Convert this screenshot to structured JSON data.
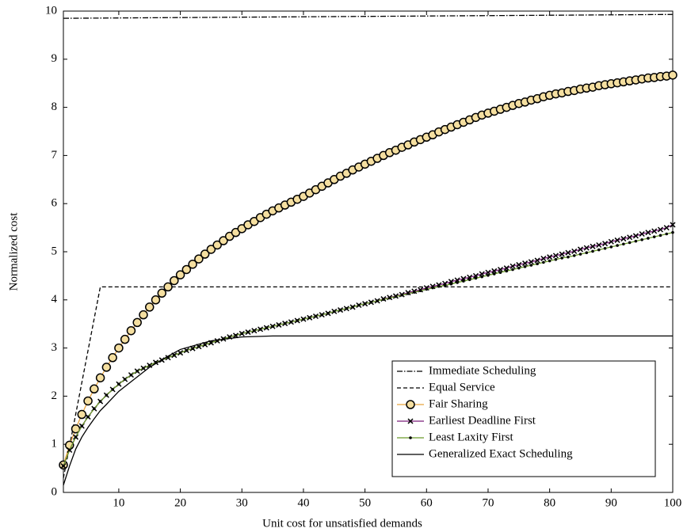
{
  "chart_data": {
    "type": "line",
    "xlabel": "Unit cost for unsatisfied demands",
    "ylabel": "Normalized cost",
    "xlim": [
      1,
      100
    ],
    "ylim": [
      0,
      10
    ],
    "xticks": [
      10,
      20,
      30,
      40,
      50,
      60,
      70,
      80,
      90,
      100
    ],
    "yticks": [
      0,
      1,
      2,
      3,
      4,
      5,
      6,
      7,
      8,
      9,
      10
    ],
    "legend": "lower right",
    "series": [
      {
        "name": "Immediate Scheduling",
        "color": "#000000",
        "style": "dash-dot",
        "x": [
          1,
          100
        ],
        "values": [
          9.85,
          9.93
        ]
      },
      {
        "name": "Equal Service",
        "color": "#000000",
        "style": "dashed",
        "x": [
          1,
          7,
          100
        ],
        "values": [
          0.3,
          4.27,
          4.27
        ]
      },
      {
        "name": "Fair Sharing",
        "color": "#e8a33d",
        "style": "solid",
        "marker": "circle",
        "marker_fill": "#f5dfa0",
        "x": [
          1,
          2,
          3,
          4,
          5,
          6,
          7,
          8,
          9,
          10,
          11,
          12,
          13,
          14,
          15,
          16,
          17,
          18,
          19,
          20,
          21,
          22,
          23,
          24,
          25,
          26,
          27,
          28,
          29,
          30,
          31,
          32,
          33,
          34,
          35,
          36,
          37,
          38,
          39,
          40,
          41,
          42,
          43,
          44,
          45,
          46,
          47,
          48,
          49,
          50,
          51,
          52,
          53,
          54,
          55,
          56,
          57,
          58,
          59,
          60,
          61,
          62,
          63,
          64,
          65,
          66,
          67,
          68,
          69,
          70,
          71,
          72,
          73,
          74,
          75,
          76,
          77,
          78,
          79,
          80,
          81,
          82,
          83,
          84,
          85,
          86,
          87,
          88,
          89,
          90,
          91,
          92,
          93,
          94,
          95,
          96,
          97,
          98,
          99,
          100
        ],
        "values": [
          0.57,
          0.98,
          1.32,
          1.62,
          1.9,
          2.15,
          2.38,
          2.6,
          2.8,
          3.0,
          3.18,
          3.36,
          3.53,
          3.69,
          3.85,
          4.0,
          4.14,
          4.27,
          4.4,
          4.52,
          4.63,
          4.74,
          4.85,
          4.95,
          5.05,
          5.14,
          5.23,
          5.32,
          5.4,
          5.48,
          5.56,
          5.63,
          5.71,
          5.78,
          5.85,
          5.91,
          5.97,
          6.03,
          6.09,
          6.15,
          6.22,
          6.29,
          6.36,
          6.43,
          6.5,
          6.57,
          6.63,
          6.7,
          6.76,
          6.82,
          6.88,
          6.94,
          7.0,
          7.06,
          7.11,
          7.17,
          7.22,
          7.28,
          7.33,
          7.38,
          7.43,
          7.49,
          7.54,
          7.59,
          7.64,
          7.69,
          7.74,
          7.79,
          7.84,
          7.88,
          7.92,
          7.96,
          8.0,
          8.04,
          8.08,
          8.11,
          8.15,
          8.18,
          8.22,
          8.25,
          8.28,
          8.3,
          8.33,
          8.35,
          8.38,
          8.4,
          8.42,
          8.45,
          8.47,
          8.49,
          8.51,
          8.53,
          8.55,
          8.57,
          8.59,
          8.61,
          8.62,
          8.64,
          8.65,
          8.67
        ]
      },
      {
        "name": "Earliest Deadline First",
        "color": "#7b1f7b",
        "style": "solid",
        "marker": "cross",
        "x": [
          1,
          2,
          3,
          4,
          5,
          6,
          7,
          8,
          9,
          10,
          11,
          12,
          13,
          14,
          15,
          16,
          17,
          18,
          19,
          20,
          21,
          22,
          23,
          24,
          25,
          26,
          27,
          28,
          29,
          30,
          31,
          32,
          33,
          34,
          35,
          36,
          37,
          38,
          39,
          40,
          41,
          42,
          43,
          44,
          45,
          46,
          47,
          48,
          49,
          50,
          51,
          52,
          53,
          54,
          55,
          56,
          57,
          58,
          59,
          60,
          61,
          62,
          63,
          64,
          65,
          66,
          67,
          68,
          69,
          70,
          71,
          72,
          73,
          74,
          75,
          76,
          77,
          78,
          79,
          80,
          81,
          82,
          83,
          84,
          85,
          86,
          87,
          88,
          89,
          90,
          91,
          92,
          93,
          94,
          95,
          96,
          97,
          98,
          99,
          100
        ],
        "values": [
          0.55,
          0.88,
          1.15,
          1.38,
          1.57,
          1.74,
          1.89,
          2.02,
          2.14,
          2.25,
          2.35,
          2.44,
          2.52,
          2.58,
          2.64,
          2.7,
          2.75,
          2.8,
          2.85,
          2.9,
          2.95,
          2.99,
          3.03,
          3.07,
          3.11,
          3.15,
          3.19,
          3.23,
          3.26,
          3.3,
          3.33,
          3.36,
          3.39,
          3.42,
          3.45,
          3.48,
          3.51,
          3.54,
          3.57,
          3.6,
          3.63,
          3.66,
          3.69,
          3.72,
          3.76,
          3.79,
          3.82,
          3.85,
          3.89,
          3.92,
          3.95,
          3.98,
          4.02,
          4.05,
          4.08,
          4.11,
          4.15,
          4.18,
          4.21,
          4.25,
          4.28,
          4.31,
          4.34,
          4.38,
          4.41,
          4.44,
          4.47,
          4.5,
          4.54,
          4.57,
          4.6,
          4.63,
          4.66,
          4.7,
          4.73,
          4.76,
          4.79,
          4.82,
          4.86,
          4.89,
          4.92,
          4.95,
          4.98,
          5.01,
          5.05,
          5.08,
          5.11,
          5.14,
          5.17,
          5.21,
          5.24,
          5.27,
          5.3,
          5.33,
          5.37,
          5.4,
          5.43,
          5.46,
          5.5,
          5.56
        ]
      },
      {
        "name": "Least Laxity First",
        "color": "#6b9b2a",
        "style": "solid",
        "marker": "dot",
        "x": [
          1,
          2,
          3,
          4,
          5,
          6,
          7,
          8,
          9,
          10,
          11,
          12,
          13,
          14,
          15,
          16,
          17,
          18,
          19,
          20,
          21,
          22,
          23,
          24,
          25,
          26,
          27,
          28,
          29,
          30,
          31,
          32,
          33,
          34,
          35,
          36,
          37,
          38,
          39,
          40,
          41,
          42,
          43,
          44,
          45,
          46,
          47,
          48,
          49,
          50,
          51,
          52,
          53,
          54,
          55,
          56,
          57,
          58,
          59,
          60,
          61,
          62,
          63,
          64,
          65,
          66,
          67,
          68,
          69,
          70,
          71,
          72,
          73,
          74,
          75,
          76,
          77,
          78,
          79,
          80,
          81,
          82,
          83,
          84,
          85,
          86,
          87,
          88,
          89,
          90,
          91,
          92,
          93,
          94,
          95,
          96,
          97,
          98,
          99,
          100
        ],
        "values": [
          0.55,
          0.88,
          1.15,
          1.38,
          1.57,
          1.74,
          1.89,
          2.02,
          2.14,
          2.25,
          2.35,
          2.44,
          2.52,
          2.58,
          2.64,
          2.7,
          2.75,
          2.8,
          2.85,
          2.9,
          2.95,
          2.99,
          3.03,
          3.07,
          3.11,
          3.15,
          3.19,
          3.23,
          3.26,
          3.3,
          3.33,
          3.36,
          3.39,
          3.42,
          3.45,
          3.48,
          3.51,
          3.54,
          3.57,
          3.6,
          3.63,
          3.66,
          3.69,
          3.72,
          3.76,
          3.79,
          3.82,
          3.85,
          3.89,
          3.92,
          3.95,
          3.98,
          4.01,
          4.04,
          4.07,
          4.1,
          4.13,
          4.16,
          4.19,
          4.22,
          4.25,
          4.28,
          4.3,
          4.33,
          4.36,
          4.39,
          4.42,
          4.45,
          4.48,
          4.51,
          4.54,
          4.57,
          4.6,
          4.63,
          4.66,
          4.69,
          4.72,
          4.75,
          4.78,
          4.81,
          4.84,
          4.87,
          4.89,
          4.92,
          4.95,
          4.98,
          5.01,
          5.04,
          5.07,
          5.1,
          5.13,
          5.16,
          5.19,
          5.22,
          5.25,
          5.28,
          5.31,
          5.34,
          5.37,
          5.4
        ]
      },
      {
        "name": "Generalized Exact Scheduling",
        "color": "#000000",
        "style": "solid",
        "x": [
          1,
          2,
          3,
          4,
          5,
          6,
          7,
          8,
          10,
          12,
          15,
          18,
          20,
          25,
          30,
          35,
          100
        ],
        "values": [
          0.15,
          0.55,
          0.9,
          1.15,
          1.35,
          1.53,
          1.7,
          1.83,
          2.1,
          2.3,
          2.6,
          2.83,
          2.97,
          3.15,
          3.23,
          3.25,
          3.25
        ]
      }
    ]
  }
}
